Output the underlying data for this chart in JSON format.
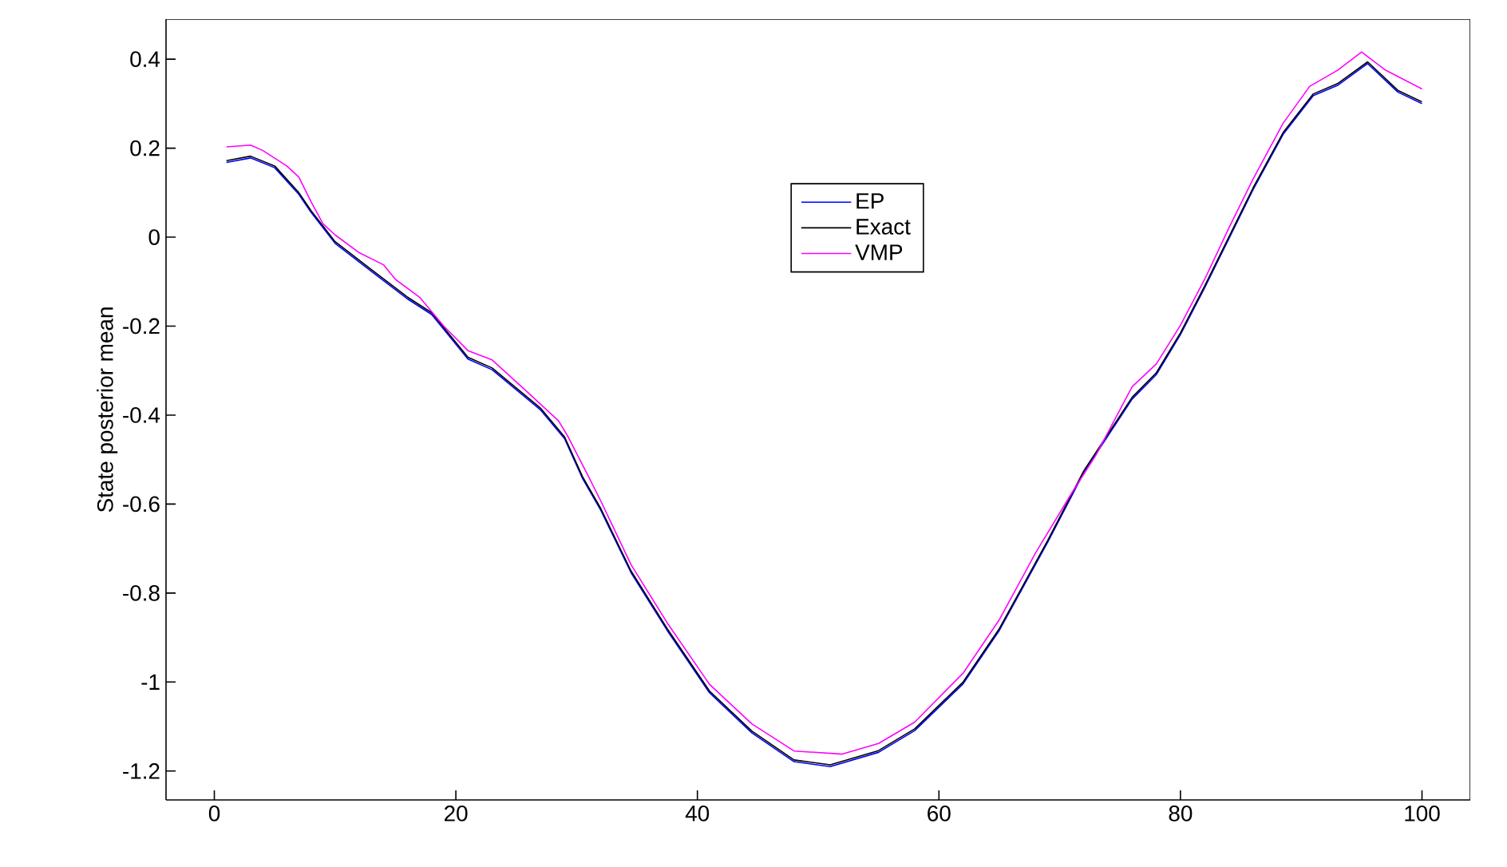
{
  "chart_data": {
    "type": "line",
    "ylabel": "State posterior mean",
    "xlim": [
      -4,
      104
    ],
    "ylim": [
      -1.265,
      0.49
    ],
    "xticks": [
      0,
      20,
      40,
      60,
      80,
      100
    ],
    "yticks": [
      -1.2,
      -1,
      -0.8,
      -0.6,
      -0.4,
      -0.2,
      0,
      0.2,
      0.4
    ],
    "grid": false,
    "legend": "top",
    "marker": "none",
    "line_style": "solid",
    "series": [
      {
        "name": "EP",
        "color": "#0000ff",
        "x": [
          1,
          3,
          5,
          7,
          8,
          10,
          13,
          16,
          18,
          21,
          23,
          27,
          29,
          30.5,
          32,
          34.5,
          37.5,
          41,
          44.5,
          48,
          51,
          55,
          58,
          62,
          65,
          69,
          72,
          76,
          78,
          80,
          82,
          84,
          86,
          88.5,
          91,
          93,
          95.5,
          98,
          100
        ],
        "values": [
          0.168,
          0.178,
          0.156,
          0.096,
          0.056,
          -0.014,
          -0.077,
          -0.139,
          -0.174,
          -0.274,
          -0.298,
          -0.388,
          -0.453,
          -0.543,
          -0.614,
          -0.754,
          -0.884,
          -1.024,
          -1.114,
          -1.179,
          -1.19,
          -1.158,
          -1.109,
          -1.004,
          -0.884,
          -0.686,
          -0.529,
          -0.364,
          -0.309,
          -0.219,
          -0.114,
          -0.004,
          0.106,
          0.231,
          0.318,
          0.341,
          0.39,
          0.326,
          0.3
        ]
      },
      {
        "name": "Exact",
        "color": "#000000",
        "x": [
          1,
          3,
          5,
          7,
          8,
          10,
          13,
          16,
          18,
          21,
          23,
          27,
          29,
          30.5,
          32,
          34.5,
          37.5,
          41,
          44.5,
          48,
          51,
          55,
          58,
          62,
          65,
          69,
          72,
          76,
          78,
          80,
          82,
          84,
          86,
          88.5,
          91,
          93,
          95.5,
          98,
          100
        ],
        "values": [
          0.172,
          0.182,
          0.16,
          0.1,
          0.06,
          -0.01,
          -0.073,
          -0.135,
          -0.17,
          -0.27,
          -0.294,
          -0.384,
          -0.449,
          -0.539,
          -0.61,
          -0.75,
          -0.88,
          -1.02,
          -1.11,
          -1.175,
          -1.186,
          -1.154,
          -1.105,
          -1.0,
          -0.88,
          -0.682,
          -0.525,
          -0.36,
          -0.305,
          -0.215,
          -0.11,
          0.0,
          0.11,
          0.235,
          0.322,
          0.345,
          0.394,
          0.33,
          0.304
        ]
      },
      {
        "name": "VMP",
        "color": "#ff00ff",
        "x": [
          1,
          3,
          4,
          6,
          7,
          8,
          9,
          10,
          12,
          14,
          15,
          17,
          19,
          21,
          23,
          26,
          28.5,
          29.3,
          31,
          32,
          34.5,
          37.5,
          41,
          44.5,
          48,
          52,
          55,
          58,
          62,
          65,
          68,
          71,
          73,
          76,
          78,
          80,
          82,
          84,
          86,
          88.5,
          90.7,
          93,
          95,
          97,
          100
        ],
        "values": [
          0.203,
          0.207,
          0.195,
          0.16,
          0.135,
          0.08,
          0.03,
          0.005,
          -0.035,
          -0.062,
          -0.095,
          -0.135,
          -0.2,
          -0.255,
          -0.276,
          -0.35,
          -0.413,
          -0.449,
          -0.539,
          -0.593,
          -0.736,
          -0.867,
          -1.005,
          -1.094,
          -1.155,
          -1.162,
          -1.138,
          -1.09,
          -0.98,
          -0.86,
          -0.71,
          -0.575,
          -0.49,
          -0.336,
          -0.285,
          -0.198,
          -0.095,
          0.02,
          0.13,
          0.256,
          0.339,
          0.375,
          0.416,
          0.375,
          0.333
        ]
      }
    ]
  }
}
